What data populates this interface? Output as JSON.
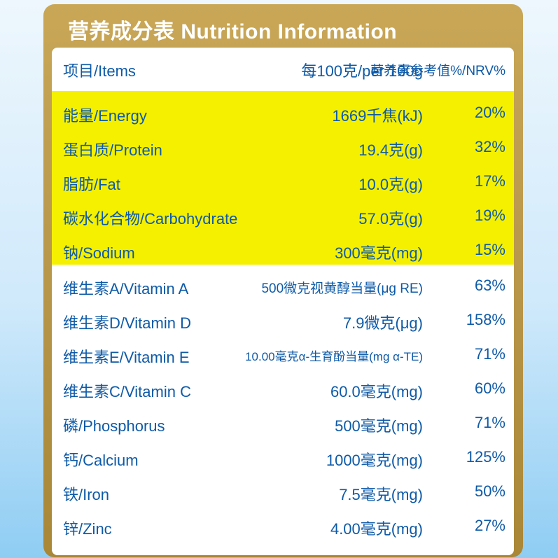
{
  "title": "营养成分表 Nutrition Information",
  "header": {
    "item": "项目/Items",
    "amount": "每100克/per 100g",
    "nrv": "营养素参考值%/NRV%"
  },
  "rows": [
    {
      "item": "能量/Energy",
      "amount": "1669千焦(kJ)",
      "nrv": "20%"
    },
    {
      "item": "蛋白质/Protein",
      "amount": "19.4克(g)",
      "nrv": "32%"
    },
    {
      "item": "脂肪/Fat",
      "amount": "10.0克(g)",
      "nrv": "17%"
    },
    {
      "item": "碳水化合物/Carbohydrate",
      "amount": "57.0克(g)",
      "nrv": "19%"
    },
    {
      "item": "钠/Sodium",
      "amount": "300毫克(mg)",
      "nrv": "15%"
    },
    {
      "item": "维生素A/Vitamin A",
      "amount": "500微克视黄醇当量(μg RE)",
      "nrv": "63%"
    },
    {
      "item": "维生素D/Vitamin D",
      "amount": "7.9微克(μg)",
      "nrv": "158%"
    },
    {
      "item": "维生素E/Vitamin E",
      "amount": "10.00毫克α-生育酚当量(mg α-TE)",
      "nrv": "71%"
    },
    {
      "item": "维生素C/Vitamin C",
      "amount": "60.0毫克(mg)",
      "nrv": "60%"
    },
    {
      "item": "磷/Phosphorus",
      "amount": "500毫克(mg)",
      "nrv": "71%"
    },
    {
      "item": "钙/Calcium",
      "amount": "1000毫克(mg)",
      "nrv": "125%"
    },
    {
      "item": "铁/Iron",
      "amount": "7.5毫克(mg)",
      "nrv": "50%"
    },
    {
      "item": "锌/Zinc",
      "amount": "4.00毫克(mg)",
      "nrv": "27%"
    }
  ],
  "colors": {
    "text": "#0e5aa7",
    "highlight": "#f5f000",
    "frame": "#b8964a"
  }
}
